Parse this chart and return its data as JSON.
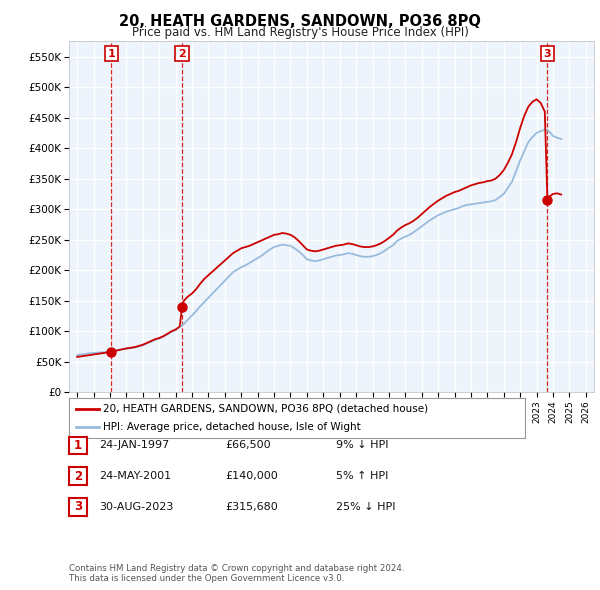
{
  "title": "20, HEATH GARDENS, SANDOWN, PO36 8PQ",
  "subtitle": "Price paid vs. HM Land Registry's House Price Index (HPI)",
  "footer": "Contains HM Land Registry data © Crown copyright and database right 2024.\nThis data is licensed under the Open Government Licence v3.0.",
  "legend_entry1": "20, HEATH GARDENS, SANDOWN, PO36 8PQ (detached house)",
  "legend_entry2": "HPI: Average price, detached house, Isle of Wight",
  "transactions": [
    {
      "num": 1,
      "date": "24-JAN-1997",
      "price": "£66,500",
      "pct": "9% ↓ HPI"
    },
    {
      "num": 2,
      "date": "24-MAY-2001",
      "price": "£140,000",
      "pct": "5% ↑ HPI"
    },
    {
      "num": 3,
      "date": "30-AUG-2023",
      "price": "£315,680",
      "pct": "25% ↓ HPI"
    }
  ],
  "transaction_dates": [
    1997.07,
    2001.39,
    2023.66
  ],
  "transaction_prices": [
    66500,
    140000,
    315680
  ],
  "ylim": [
    0,
    575000
  ],
  "xlim": [
    1994.5,
    2026.5
  ],
  "xticks": [
    1995,
    1996,
    1997,
    1998,
    1999,
    2000,
    2001,
    2002,
    2003,
    2004,
    2005,
    2006,
    2007,
    2008,
    2009,
    2010,
    2011,
    2012,
    2013,
    2014,
    2015,
    2016,
    2017,
    2018,
    2019,
    2020,
    2021,
    2022,
    2023,
    2024,
    2025,
    2026
  ],
  "bg_color": "#eef4fb",
  "grid_color": "#ffffff",
  "line_color_property": "#cc0000",
  "line_color_hpi": "#99bbdd",
  "dashed_line_color": "#cc0000",
  "marker_color": "#cc0000",
  "hpi_data_x": [
    1995.0,
    1995.25,
    1995.5,
    1995.75,
    1996.0,
    1996.25,
    1996.5,
    1996.75,
    1997.0,
    1997.25,
    1997.5,
    1997.75,
    1998.0,
    1998.25,
    1998.5,
    1998.75,
    1999.0,
    1999.25,
    1999.5,
    1999.75,
    2000.0,
    2000.25,
    2000.5,
    2000.75,
    2001.0,
    2001.25,
    2001.5,
    2001.75,
    2002.0,
    2002.25,
    2002.5,
    2002.75,
    2003.0,
    2003.25,
    2003.5,
    2003.75,
    2004.0,
    2004.25,
    2004.5,
    2004.75,
    2005.0,
    2005.25,
    2005.5,
    2005.75,
    2006.0,
    2006.25,
    2006.5,
    2006.75,
    2007.0,
    2007.25,
    2007.5,
    2007.75,
    2008.0,
    2008.25,
    2008.5,
    2008.75,
    2009.0,
    2009.25,
    2009.5,
    2009.75,
    2010.0,
    2010.25,
    2010.5,
    2010.75,
    2011.0,
    2011.25,
    2011.5,
    2011.75,
    2012.0,
    2012.25,
    2012.5,
    2012.75,
    2013.0,
    2013.25,
    2013.5,
    2013.75,
    2014.0,
    2014.25,
    2014.5,
    2014.75,
    2015.0,
    2015.25,
    2015.5,
    2015.75,
    2016.0,
    2016.25,
    2016.5,
    2016.75,
    2017.0,
    2017.25,
    2017.5,
    2017.75,
    2018.0,
    2018.25,
    2018.5,
    2018.75,
    2019.0,
    2019.25,
    2019.5,
    2019.75,
    2020.0,
    2020.25,
    2020.5,
    2020.75,
    2021.0,
    2021.25,
    2021.5,
    2021.75,
    2022.0,
    2022.25,
    2022.5,
    2022.75,
    2023.0,
    2023.25,
    2023.5,
    2023.75,
    2024.0,
    2024.25,
    2024.5
  ],
  "hpi_data_y": [
    61000,
    62000,
    63000,
    64000,
    64500,
    65000,
    65500,
    66000,
    67000,
    68000,
    69500,
    70500,
    71500,
    72500,
    73500,
    75000,
    77000,
    80000,
    83000,
    86000,
    88000,
    91000,
    95000,
    99000,
    102000,
    107000,
    112000,
    119000,
    126000,
    133000,
    141000,
    148000,
    155000,
    162000,
    169000,
    176000,
    183000,
    190000,
    197000,
    201000,
    205000,
    208000,
    212000,
    216000,
    220000,
    224000,
    229000,
    234000,
    238000,
    240000,
    242000,
    241000,
    240000,
    236000,
    231000,
    225000,
    218000,
    216000,
    215000,
    216000,
    218000,
    220000,
    222000,
    224000,
    225000,
    226000,
    228000,
    227000,
    225000,
    223000,
    222000,
    222000,
    223000,
    225000,
    228000,
    232000,
    237000,
    241000,
    248000,
    252000,
    255000,
    258000,
    262000,
    267000,
    272000,
    277000,
    282000,
    286000,
    290000,
    293000,
    296000,
    298000,
    300000,
    302000,
    305000,
    307000,
    308000,
    309000,
    310000,
    311000,
    312000,
    313000,
    315000,
    320000,
    325000,
    335000,
    345000,
    362000,
    380000,
    395000,
    410000,
    418000,
    425000,
    428000,
    430000,
    428000,
    420000,
    417000,
    415000
  ],
  "prop_data_x": [
    1995.0,
    1995.25,
    1995.5,
    1995.75,
    1996.0,
    1996.25,
    1996.5,
    1996.75,
    1997.0,
    1997.07,
    1997.25,
    1997.5,
    1997.75,
    1998.0,
    1998.25,
    1998.5,
    1998.75,
    1999.0,
    1999.25,
    1999.5,
    1999.75,
    2000.0,
    2000.25,
    2000.5,
    2000.75,
    2001.0,
    2001.25,
    2001.39,
    2001.5,
    2001.75,
    2002.0,
    2002.25,
    2002.5,
    2002.75,
    2003.0,
    2003.25,
    2003.5,
    2003.75,
    2004.0,
    2004.25,
    2004.5,
    2004.75,
    2005.0,
    2005.25,
    2005.5,
    2005.75,
    2006.0,
    2006.25,
    2006.5,
    2006.75,
    2007.0,
    2007.25,
    2007.5,
    2007.75,
    2008.0,
    2008.25,
    2008.5,
    2008.75,
    2009.0,
    2009.25,
    2009.5,
    2009.75,
    2010.0,
    2010.25,
    2010.5,
    2010.75,
    2011.0,
    2011.25,
    2011.5,
    2011.75,
    2012.0,
    2012.25,
    2012.5,
    2012.75,
    2013.0,
    2013.25,
    2013.5,
    2013.75,
    2014.0,
    2014.25,
    2014.5,
    2014.75,
    2015.0,
    2015.25,
    2015.5,
    2015.75,
    2016.0,
    2016.25,
    2016.5,
    2016.75,
    2017.0,
    2017.25,
    2017.5,
    2017.75,
    2018.0,
    2018.25,
    2018.5,
    2018.75,
    2019.0,
    2019.25,
    2019.5,
    2019.75,
    2020.0,
    2020.25,
    2020.5,
    2020.75,
    2021.0,
    2021.25,
    2021.5,
    2021.75,
    2022.0,
    2022.25,
    2022.5,
    2022.75,
    2023.0,
    2023.25,
    2023.5,
    2023.66,
    2023.75,
    2024.0,
    2024.25,
    2024.5
  ],
  "prop_data_y": [
    58000,
    59000,
    60000,
    61000,
    62000,
    63000,
    64000,
    65000,
    66000,
    66500,
    67500,
    69000,
    70500,
    72000,
    73000,
    74000,
    76000,
    78000,
    81000,
    84000,
    87000,
    89000,
    92000,
    96000,
    100000,
    103000,
    108000,
    140000,
    150000,
    157000,
    162000,
    169000,
    178000,
    186000,
    192000,
    198000,
    204000,
    210000,
    216000,
    222000,
    228000,
    232000,
    236000,
    238000,
    240000,
    243000,
    246000,
    249000,
    252000,
    255000,
    258000,
    259000,
    261000,
    260000,
    258000,
    254000,
    248000,
    241000,
    234000,
    232000,
    231000,
    232000,
    234000,
    236000,
    238000,
    240000,
    241000,
    242000,
    244000,
    243000,
    241000,
    239000,
    238000,
    238000,
    239000,
    241000,
    244000,
    248000,
    253000,
    258000,
    265000,
    270000,
    274000,
    277000,
    281000,
    286000,
    292000,
    298000,
    304000,
    309000,
    314000,
    318000,
    322000,
    325000,
    328000,
    330000,
    333000,
    336000,
    339000,
    341000,
    343000,
    344000,
    346000,
    347000,
    350000,
    356000,
    364000,
    376000,
    390000,
    410000,
    433000,
    453000,
    468000,
    476000,
    480000,
    474000,
    460000,
    315680,
    320000,
    325000,
    326000,
    324000
  ]
}
